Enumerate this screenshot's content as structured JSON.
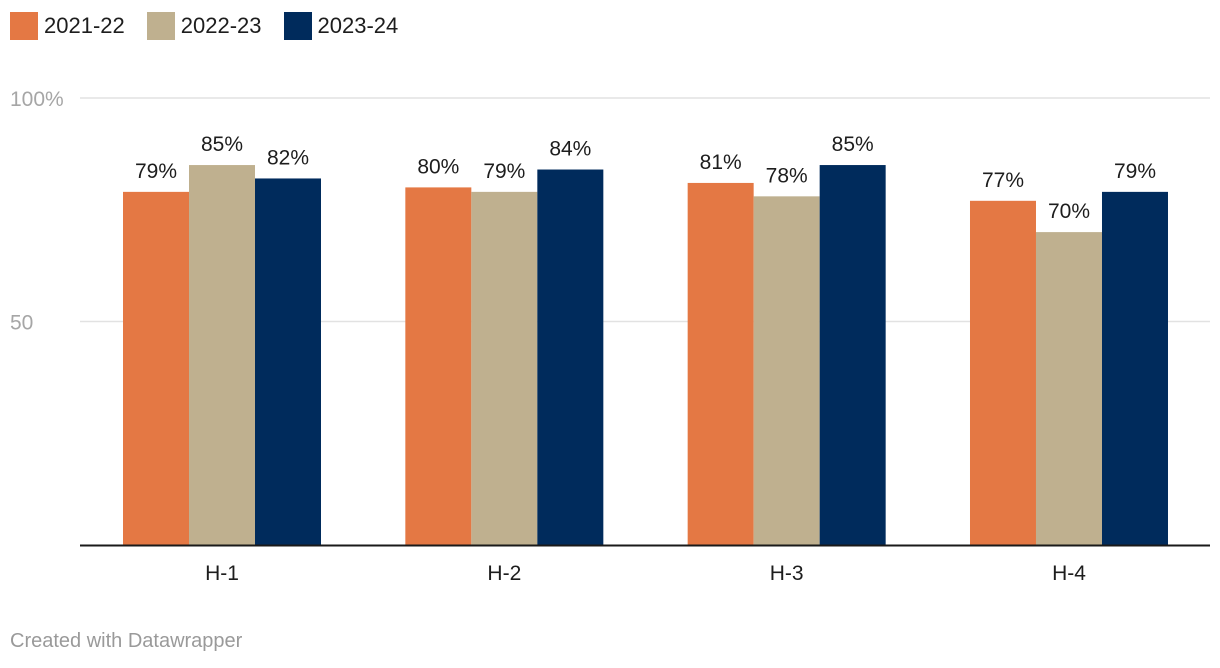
{
  "colors": {
    "s2021": "#e47844",
    "s2022": "#bfb08f",
    "s2023": "#002b5c",
    "grid": "#e2e2e2",
    "axis": "#1a1a1a",
    "tick_text": "#a6a6a6",
    "label_text": "#1d1d1d"
  },
  "legend": {
    "items": [
      {
        "label": "2021-22",
        "color": "#e47844"
      },
      {
        "label": "2022-23",
        "color": "#bfb08f"
      },
      {
        "label": "2023-24",
        "color": "#002b5c"
      }
    ]
  },
  "chart_data": {
    "type": "bar",
    "title": "",
    "xlabel": "",
    "ylabel": "",
    "ylim": [
      0,
      100
    ],
    "yticks": [
      {
        "value": 100,
        "label": "100%"
      },
      {
        "value": 50,
        "label": "50"
      }
    ],
    "grid": true,
    "legend_position": "top-left",
    "categories": [
      "H-1",
      "H-2",
      "H-3",
      "H-4"
    ],
    "series": [
      {
        "name": "2021-22",
        "color": "#e47844",
        "values": [
          79,
          80,
          81,
          77
        ],
        "labels": [
          "79%",
          "80%",
          "81%",
          "77%"
        ]
      },
      {
        "name": "2022-23",
        "color": "#bfb08f",
        "values": [
          85,
          79,
          78,
          70
        ],
        "labels": [
          "85%",
          "79%",
          "78%",
          "70%"
        ]
      },
      {
        "name": "2023-24",
        "color": "#002b5c",
        "values": [
          82,
          84,
          85,
          79
        ],
        "labels": [
          "82%",
          "84%",
          "85%",
          "79%"
        ]
      }
    ]
  },
  "footer": {
    "credit": "Created with Datawrapper"
  }
}
